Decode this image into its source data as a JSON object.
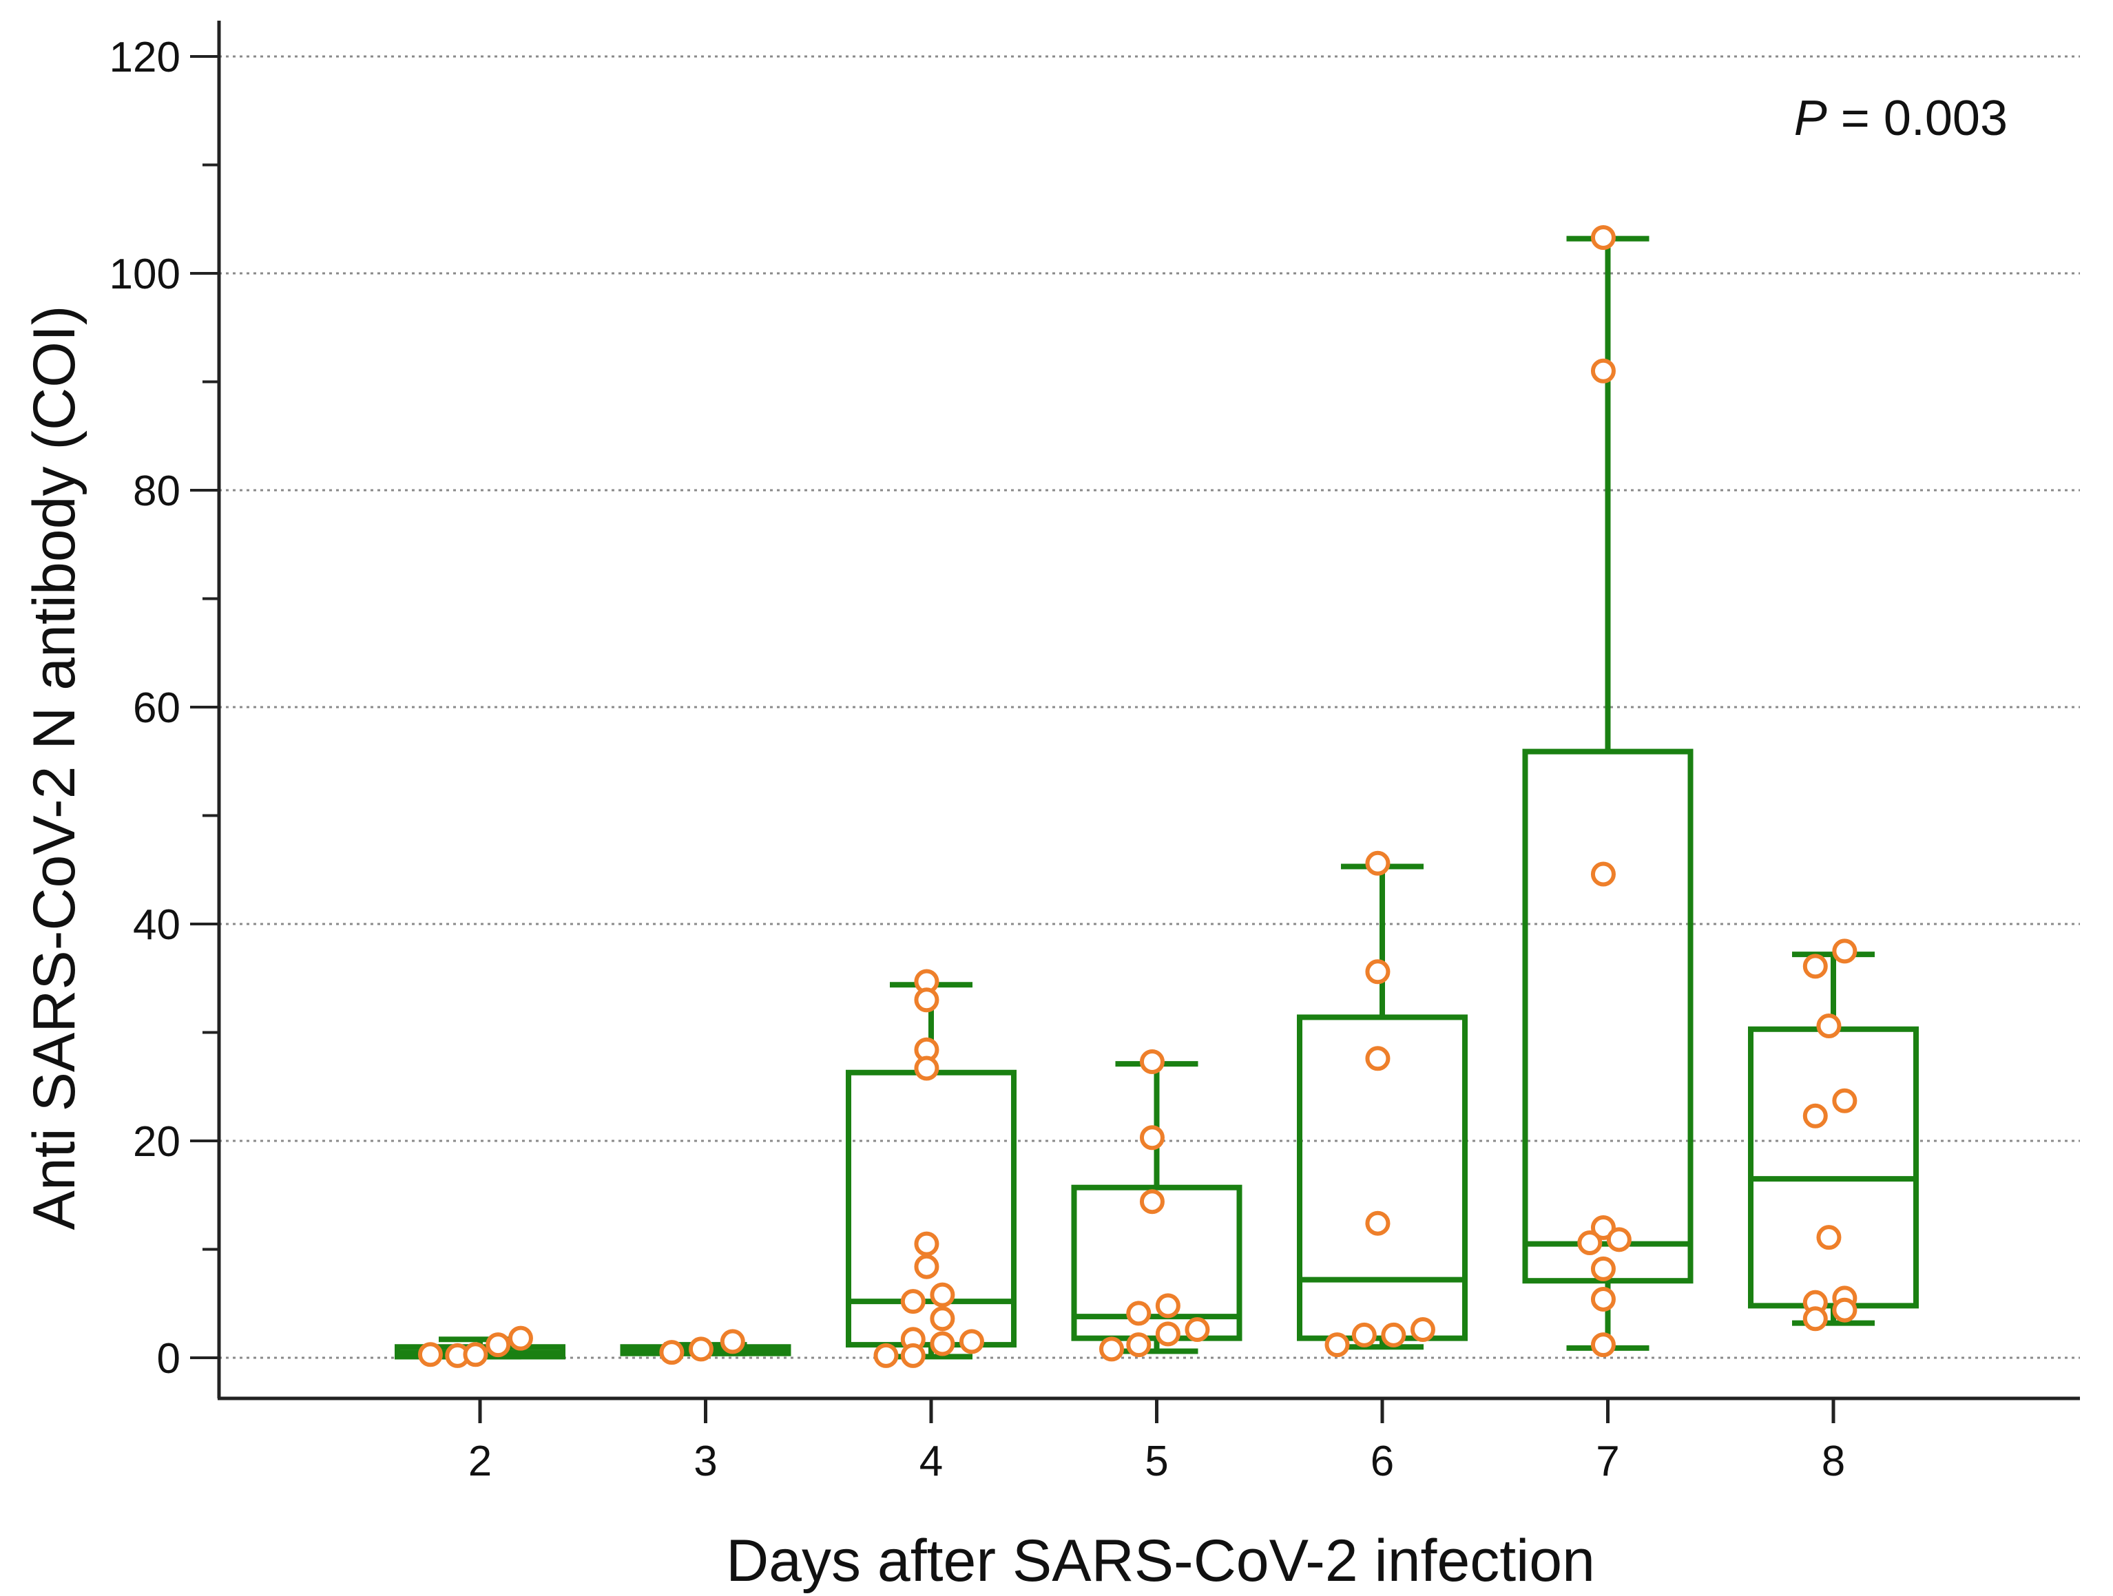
{
  "chart_data": {
    "type": "box",
    "title": "",
    "xlabel": "Days after SARS-CoV-2 infection",
    "ylabel": "Anti SARS-CoV-2 N antibody (COI)",
    "ylim": [
      -3.5,
      120.5
    ],
    "yticks": [
      0,
      20,
      40,
      60,
      80,
      100,
      120
    ],
    "ytick_labels": [
      "0",
      "20",
      "40",
      "60",
      "80",
      "100",
      "120"
    ],
    "y_minor_step": 10,
    "grid": "horizontal dotted at major ticks",
    "categories": [
      "2",
      "3",
      "4",
      "5",
      "6",
      "7",
      "8"
    ],
    "box_color": "#1a8012",
    "point_color": "#ee7f2a",
    "annotation": {
      "prefix": "P",
      "text": " = 0.003",
      "position": "top-right"
    },
    "boxes": [
      {
        "day": "2",
        "min": 0.1,
        "q1": 0.1,
        "median": 0.5,
        "q3": 1.0,
        "max": 1.7
      },
      {
        "day": "3",
        "min": 0.4,
        "q1": 0.4,
        "median": 0.7,
        "q3": 1.0,
        "max": 1.2
      },
      {
        "day": "4",
        "min": 0.1,
        "q1": 1.2,
        "median": 5.2,
        "q3": 26.3,
        "max": 34.4
      },
      {
        "day": "5",
        "min": 0.6,
        "q1": 1.8,
        "median": 3.8,
        "q3": 15.7,
        "max": 27.1
      },
      {
        "day": "6",
        "min": 1.0,
        "q1": 1.8,
        "median": 7.2,
        "q3": 31.4,
        "max": 45.3
      },
      {
        "day": "7",
        "min": 0.9,
        "q1": 7.1,
        "median": 10.5,
        "q3": 55.9,
        "max": 103.2
      },
      {
        "day": "8",
        "min": 3.2,
        "q1": 4.8,
        "median": 16.5,
        "q3": 30.3,
        "max": 37.2
      }
    ],
    "points": [
      {
        "day": "2",
        "dx": -0.22,
        "y": 0.3
      },
      {
        "day": "2",
        "dx": -0.1,
        "y": 0.2
      },
      {
        "day": "2",
        "dx": -0.02,
        "y": 0.3
      },
      {
        "day": "2",
        "dx": 0.08,
        "y": 1.2
      },
      {
        "day": "2",
        "dx": 0.18,
        "y": 1.8
      },
      {
        "day": "3",
        "dx": -0.15,
        "y": 0.5
      },
      {
        "day": "3",
        "dx": -0.02,
        "y": 0.8
      },
      {
        "day": "3",
        "dx": 0.12,
        "y": 1.5
      },
      {
        "day": "4",
        "dx": -0.02,
        "y": 34.7
      },
      {
        "day": "4",
        "dx": -0.02,
        "y": 33.0
      },
      {
        "day": "4",
        "dx": -0.02,
        "y": 28.4
      },
      {
        "day": "4",
        "dx": -0.02,
        "y": 26.7
      },
      {
        "day": "4",
        "dx": -0.02,
        "y": 10.5
      },
      {
        "day": "4",
        "dx": -0.02,
        "y": 8.4
      },
      {
        "day": "4",
        "dx": 0.05,
        "y": 5.8
      },
      {
        "day": "4",
        "dx": -0.08,
        "y": 5.2
      },
      {
        "day": "4",
        "dx": 0.05,
        "y": 3.6
      },
      {
        "day": "4",
        "dx": -0.08,
        "y": 1.7
      },
      {
        "day": "4",
        "dx": 0.05,
        "y": 1.3
      },
      {
        "day": "4",
        "dx": 0.18,
        "y": 1.5
      },
      {
        "day": "4",
        "dx": -0.2,
        "y": 0.2
      },
      {
        "day": "4",
        "dx": -0.08,
        "y": 0.2
      },
      {
        "day": "5",
        "dx": -0.02,
        "y": 27.3
      },
      {
        "day": "5",
        "dx": -0.02,
        "y": 20.3
      },
      {
        "day": "5",
        "dx": -0.02,
        "y": 14.4
      },
      {
        "day": "5",
        "dx": 0.05,
        "y": 4.8
      },
      {
        "day": "5",
        "dx": -0.08,
        "y": 4.1
      },
      {
        "day": "5",
        "dx": 0.18,
        "y": 2.6
      },
      {
        "day": "5",
        "dx": 0.05,
        "y": 2.2
      },
      {
        "day": "5",
        "dx": -0.08,
        "y": 1.2
      },
      {
        "day": "5",
        "dx": -0.2,
        "y": 0.8
      },
      {
        "day": "6",
        "dx": -0.02,
        "y": 45.6
      },
      {
        "day": "6",
        "dx": -0.02,
        "y": 35.6
      },
      {
        "day": "6",
        "dx": -0.02,
        "y": 27.6
      },
      {
        "day": "6",
        "dx": -0.02,
        "y": 12.4
      },
      {
        "day": "6",
        "dx": 0.18,
        "y": 2.6
      },
      {
        "day": "6",
        "dx": -0.08,
        "y": 2.1
      },
      {
        "day": "6",
        "dx": 0.05,
        "y": 2.1
      },
      {
        "day": "6",
        "dx": -0.2,
        "y": 1.2
      },
      {
        "day": "7",
        "dx": -0.02,
        "y": 103.3
      },
      {
        "day": "7",
        "dx": -0.02,
        "y": 91.0
      },
      {
        "day": "7",
        "dx": -0.02,
        "y": 44.6
      },
      {
        "day": "7",
        "dx": -0.02,
        "y": 12.0
      },
      {
        "day": "7",
        "dx": 0.05,
        "y": 10.9
      },
      {
        "day": "7",
        "dx": -0.08,
        "y": 10.6
      },
      {
        "day": "7",
        "dx": -0.02,
        "y": 8.2
      },
      {
        "day": "7",
        "dx": -0.02,
        "y": 5.4
      },
      {
        "day": "7",
        "dx": -0.02,
        "y": 1.2
      },
      {
        "day": "8",
        "dx": 0.05,
        "y": 37.5
      },
      {
        "day": "8",
        "dx": -0.08,
        "y": 36.1
      },
      {
        "day": "8",
        "dx": -0.02,
        "y": 30.6
      },
      {
        "day": "8",
        "dx": 0.05,
        "y": 23.7
      },
      {
        "day": "8",
        "dx": -0.08,
        "y": 22.3
      },
      {
        "day": "8",
        "dx": -0.02,
        "y": 11.1
      },
      {
        "day": "8",
        "dx": 0.05,
        "y": 5.5
      },
      {
        "day": "8",
        "dx": -0.08,
        "y": 5.1
      },
      {
        "day": "8",
        "dx": 0.05,
        "y": 4.4
      },
      {
        "day": "8",
        "dx": -0.08,
        "y": 3.6
      }
    ]
  }
}
